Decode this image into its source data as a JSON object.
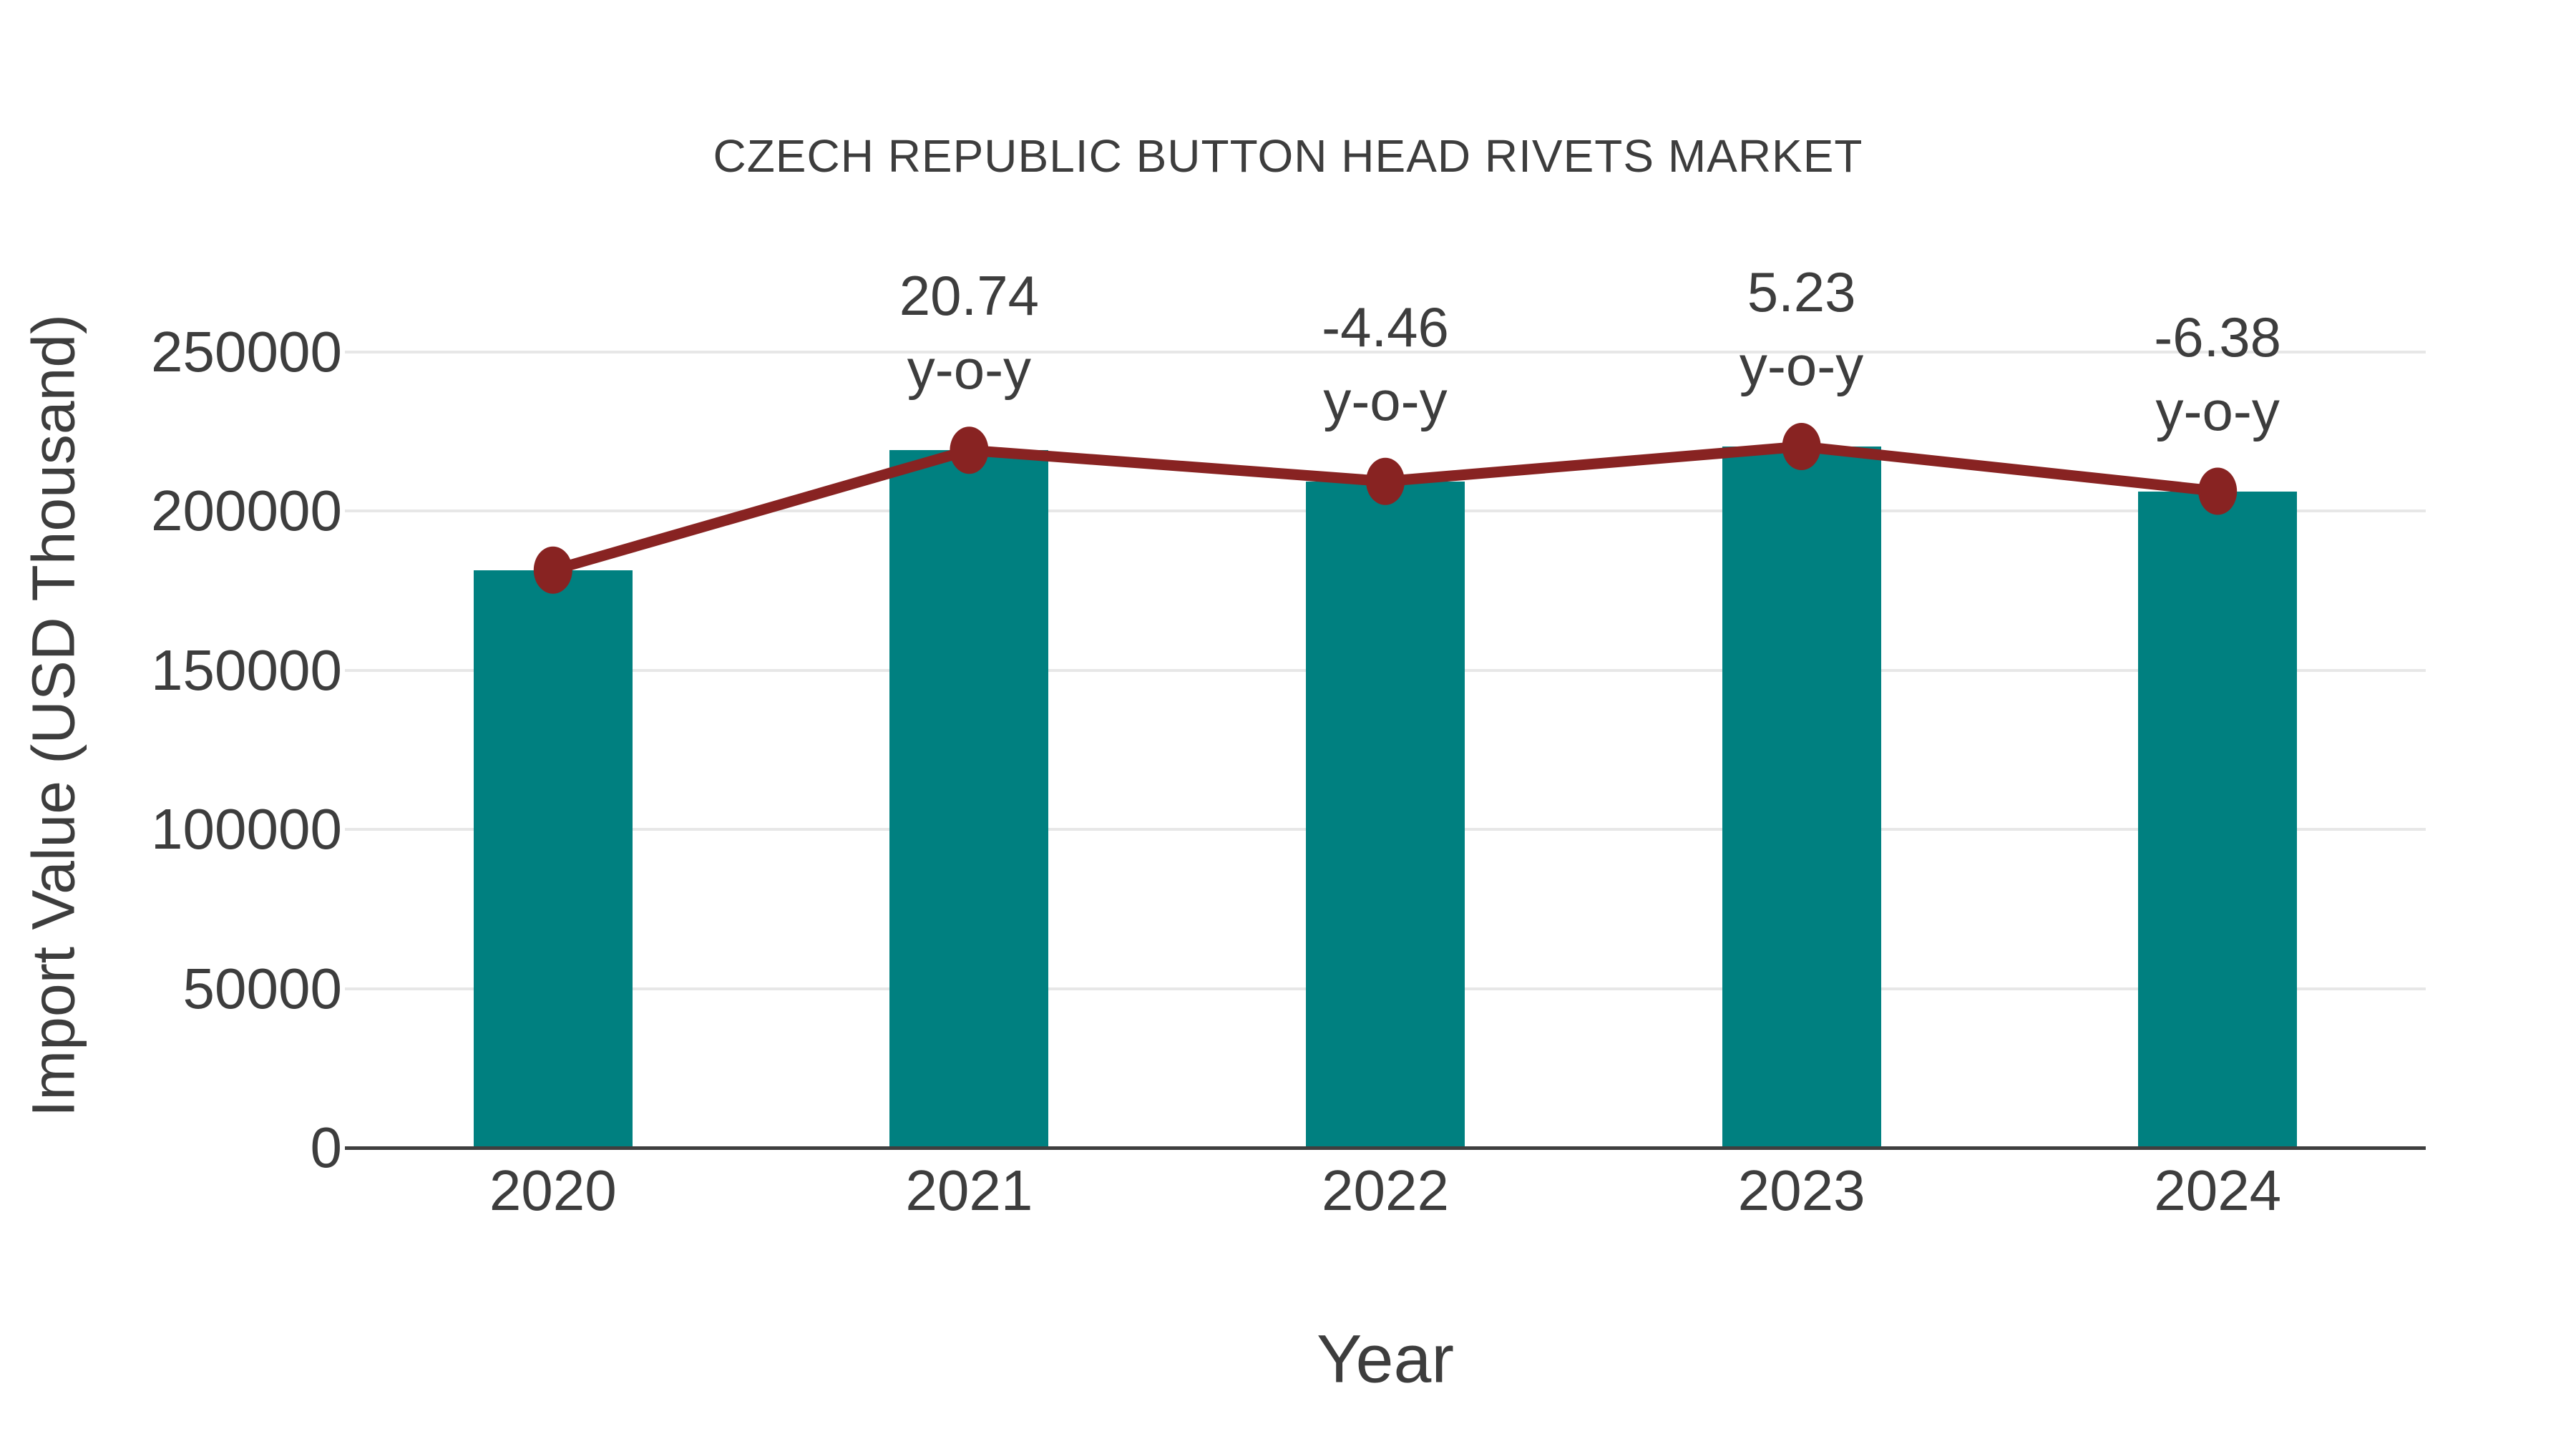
{
  "chart_data": {
    "type": "bar",
    "title": "CZECH REPUBLIC BUTTON HEAD RIVETS MARKET",
    "xlabel": "Year",
    "ylabel": "Import Value (USD Thousand)",
    "categories": [
      "2020",
      "2021",
      "2022",
      "2023",
      "2024"
    ],
    "series": [
      {
        "name": "Import Value bars",
        "type": "bar",
        "values": [
          181500,
          219150,
          209375,
          220325,
          206268
        ]
      },
      {
        "name": "Import Value trend line",
        "type": "line",
        "values": [
          181500,
          219150,
          209375,
          220325,
          206268
        ]
      }
    ],
    "annotations": [
      {
        "category": "2021",
        "line1": "20.74",
        "line2": "y-o-y"
      },
      {
        "category": "2022",
        "line1": "-4.46",
        "line2": "y-o-y"
      },
      {
        "category": "2023",
        "line1": "5.23",
        "line2": "y-o-y"
      },
      {
        "category": "2024",
        "line1": "-6.38",
        "line2": "y-o-y"
      }
    ],
    "yoy_by_index": [
      null,
      "20.74",
      "-4.46",
      "5.23",
      "-6.38"
    ],
    "yoy_suffix": "y-o-y",
    "yticks": [
      0,
      50000,
      100000,
      150000,
      200000,
      250000
    ],
    "ylim": [
      0,
      262000
    ],
    "grid": "horizontal",
    "legend": "none",
    "colors": {
      "bar": "#008080",
      "line": "#882322",
      "marker": "#882322",
      "gridline": "#e7e7e7",
      "axis_line": "#3f3f3f",
      "text": "#3d3d3d",
      "background": "#ffffff"
    }
  }
}
